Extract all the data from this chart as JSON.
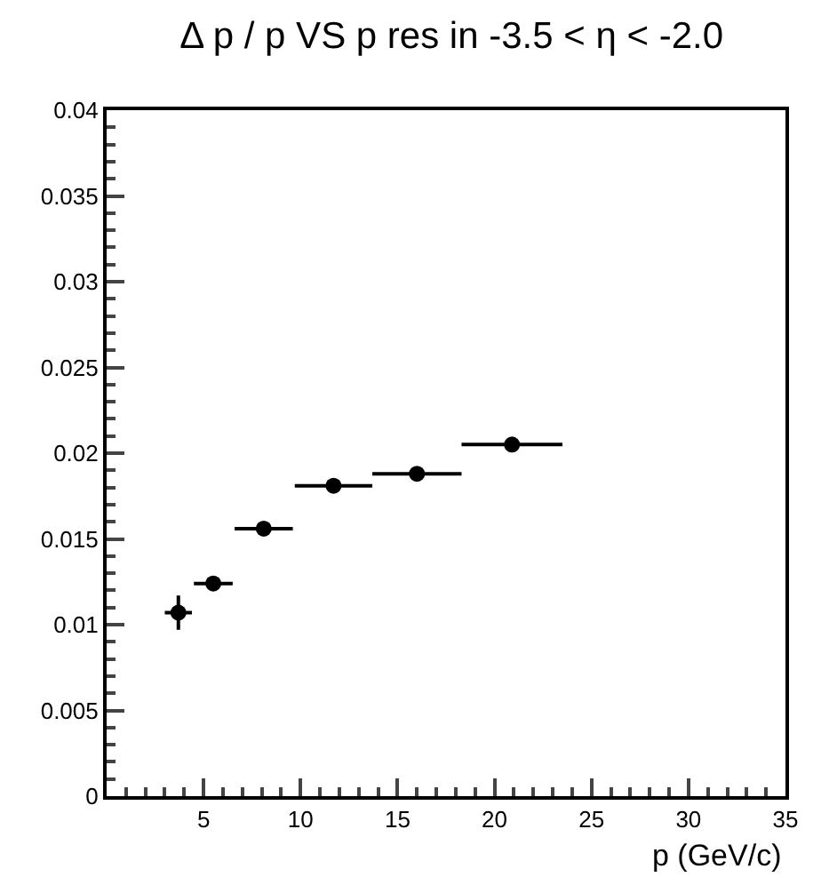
{
  "chart_data": {
    "type": "scatter",
    "title": "Δ p / p VS p res in -3.5 < η < -2.0",
    "xlabel": "p (GeV/c)",
    "x": [
      3.7,
      5.5,
      8.1,
      11.7,
      16.0,
      20.9
    ],
    "values": [
      0.0107,
      0.0124,
      0.0156,
      0.0181,
      0.0188,
      0.0205
    ],
    "errors": [
      0.001,
      null,
      null,
      null,
      null,
      null
    ],
    "xerrors": [
      0.7,
      1.0,
      1.5,
      2.0,
      2.3,
      2.6
    ],
    "color": "#000000",
    "marker": "circle",
    "legend": false,
    "xlim": [
      0,
      35
    ],
    "xticks": [
      5,
      10,
      15,
      20,
      25,
      30,
      35
    ],
    "ylim": [
      0,
      0.04
    ],
    "yticks": [
      0,
      0.005,
      0.01,
      0.015,
      0.02,
      0.025,
      0.03,
      0.035,
      0.04
    ]
  }
}
